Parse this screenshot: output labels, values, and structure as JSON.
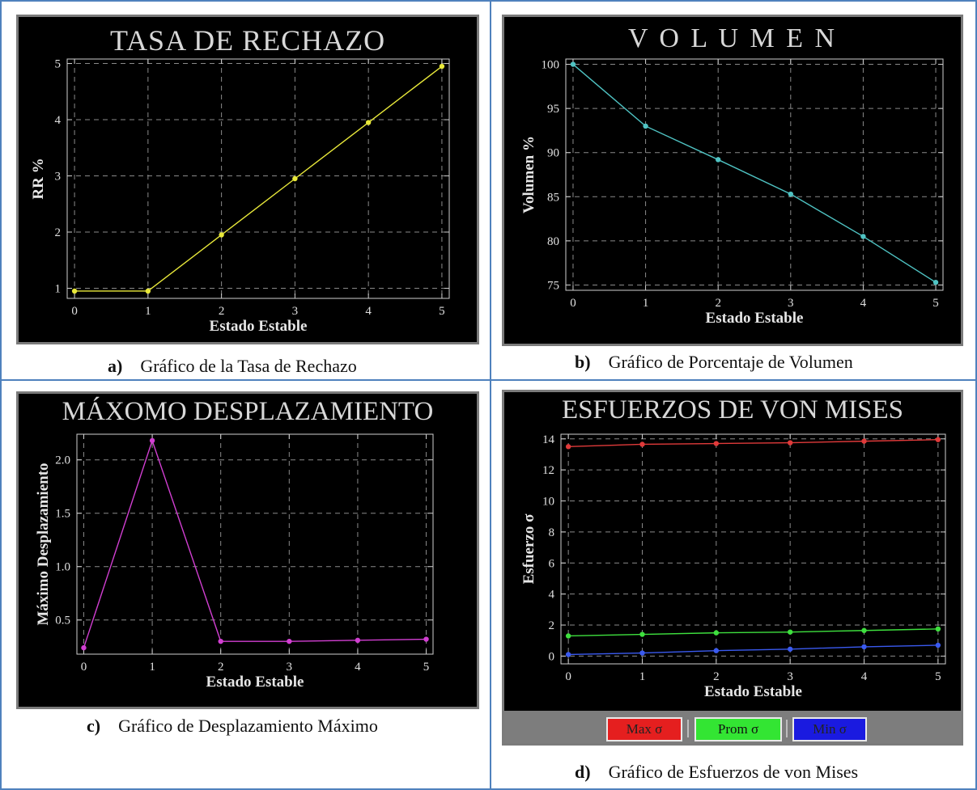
{
  "panels": {
    "a": {
      "title": "TASA  DE  RECHAZO",
      "caption_letter": "a)",
      "caption_text": "Gráfico de la Tasa de Rechazo"
    },
    "b": {
      "title": "V O L U M E N",
      "caption_letter": "b)",
      "caption_text": "Gráfico de Porcentaje de Volumen"
    },
    "c": {
      "title": "MÁXOMO DESPLAZAMIENTO",
      "caption_letter": "c)",
      "caption_text": "Gráfico de Desplazamiento Máximo"
    },
    "d": {
      "title": "ESFUERZOS DE VON MISES",
      "caption_letter": "d)",
      "caption_text": "Gráfico de Esfuerzos de von Mises",
      "legend": [
        "Max σ",
        "Prom σ",
        "Min σ"
      ]
    }
  },
  "chart_data": [
    {
      "id": "a",
      "type": "line",
      "title": "TASA  DE  RECHAZO",
      "xlabel": "Estado Estable",
      "ylabel": "RR %",
      "x": [
        0,
        1,
        2,
        3,
        4,
        5
      ],
      "series": [
        {
          "values": [
            0.95,
            0.95,
            1.95,
            2.95,
            3.95,
            4.95
          ],
          "color": "#e8e83a"
        }
      ],
      "xlim": [
        -0.1,
        5.1
      ],
      "ylim": [
        0.82,
        5.08
      ],
      "xticks": [
        0,
        1,
        2,
        3,
        4,
        5
      ],
      "yticks": [
        1,
        2,
        3,
        4,
        5
      ],
      "grid": true
    },
    {
      "id": "b",
      "type": "line",
      "title": "V O L U M E N",
      "xlabel": "Estado Estable",
      "ylabel": "Volumen %",
      "x": [
        0,
        1,
        2,
        3,
        4,
        5
      ],
      "series": [
        {
          "values": [
            100,
            93,
            89.2,
            85.3,
            80.5,
            75.3
          ],
          "color": "#4fc3c3"
        }
      ],
      "xlim": [
        -0.1,
        5.1
      ],
      "ylim": [
        74.4,
        100.6
      ],
      "xticks": [
        0,
        1,
        2,
        3,
        4,
        5
      ],
      "yticks": [
        75,
        80,
        85,
        90,
        95,
        100
      ],
      "grid": true
    },
    {
      "id": "c",
      "type": "line",
      "title": "MÁXOMO DESPLAZAMIENTO",
      "xlabel": "Estado Estable",
      "ylabel": "Máximo Desplazamiento",
      "x": [
        0,
        1,
        2,
        3,
        4,
        5
      ],
      "series": [
        {
          "values": [
            0.24,
            2.18,
            0.3,
            0.3,
            0.31,
            0.32
          ],
          "color": "#d23fd2"
        }
      ],
      "xlim": [
        -0.1,
        5.1
      ],
      "ylim": [
        0.18,
        2.24
      ],
      "xticks": [
        0,
        1,
        2,
        3,
        4,
        5
      ],
      "yticks": [
        0.5,
        1.0,
        1.5,
        2.0
      ],
      "ytick_labels": [
        "0.5",
        "1.0",
        "1.5",
        "2.0"
      ],
      "grid": true
    },
    {
      "id": "d",
      "type": "line",
      "title": "ESFUERZOS DE VON MISES",
      "xlabel": "Estado Estable",
      "ylabel": "Esfuerzo σ",
      "x": [
        0,
        1,
        2,
        3,
        4,
        5
      ],
      "series": [
        {
          "name": "Max σ",
          "values": [
            13.5,
            13.65,
            13.7,
            13.75,
            13.85,
            13.95
          ],
          "color": "#e03a3a"
        },
        {
          "name": "Prom σ",
          "values": [
            1.3,
            1.4,
            1.5,
            1.55,
            1.65,
            1.75
          ],
          "color": "#3ee03e"
        },
        {
          "name": "Min σ",
          "values": [
            0.1,
            0.2,
            0.35,
            0.45,
            0.6,
            0.7
          ],
          "color": "#3a5af0"
        }
      ],
      "xlim": [
        -0.1,
        5.1
      ],
      "ylim": [
        -0.5,
        14.3
      ],
      "xticks": [
        0,
        1,
        2,
        3,
        4,
        5
      ],
      "yticks": [
        0,
        2,
        4,
        6,
        8,
        10,
        12,
        14
      ],
      "grid": true
    }
  ]
}
